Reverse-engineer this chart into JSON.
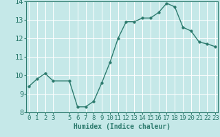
{
  "x": [
    0,
    1,
    2,
    3,
    5,
    6,
    7,
    8,
    9,
    10,
    11,
    12,
    13,
    14,
    15,
    16,
    17,
    18,
    19,
    20,
    21,
    22,
    23
  ],
  "y": [
    9.4,
    9.8,
    10.1,
    9.7,
    9.7,
    8.3,
    8.3,
    8.6,
    9.6,
    10.7,
    12.0,
    12.9,
    12.9,
    13.1,
    13.1,
    13.4,
    13.9,
    13.7,
    12.6,
    12.4,
    11.8,
    11.7,
    11.55
  ],
  "xlabel": "Humidex (Indice chaleur)",
  "ylim": [
    8,
    14
  ],
  "yticks": [
    8,
    9,
    10,
    11,
    12,
    13,
    14
  ],
  "xticks": [
    0,
    1,
    2,
    3,
    5,
    6,
    7,
    8,
    9,
    10,
    11,
    12,
    13,
    14,
    15,
    16,
    17,
    18,
    19,
    20,
    21,
    22,
    23
  ],
  "xlim": [
    -0.3,
    23.3
  ],
  "line_color": "#2d7b6e",
  "marker_size": 2.5,
  "bg_color": "#c5e8e8",
  "grid_color": "#ffffff",
  "axis_color": "#2d7b6e",
  "xlabel_fontsize": 7,
  "tick_fontsize": 6.5,
  "ytick_fontsize": 7.5,
  "line_width": 1.0
}
